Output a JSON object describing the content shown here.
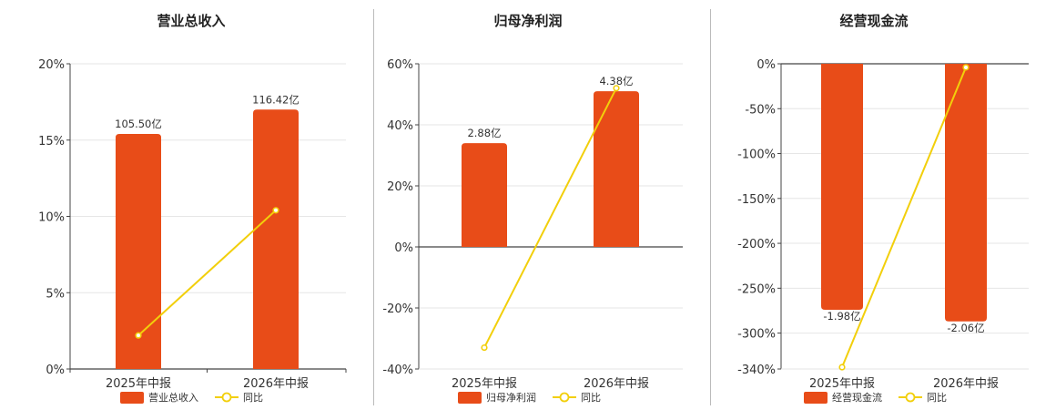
{
  "colors": {
    "bar": "#e84c18",
    "line": "#f2cf0b",
    "grid": "#e6e6e6",
    "axis": "#444444",
    "divider": "#bbbbbb"
  },
  "legend": {
    "line_label": "同比"
  },
  "chart_data": [
    {
      "type": "bar",
      "title": "营业总收入",
      "categories": [
        "2025年中报",
        "2026年中报"
      ],
      "bar_labels": [
        "105.50亿",
        "116.42亿"
      ],
      "bar_values_pct": [
        15.4,
        17.0
      ],
      "line_values_pct": [
        2.2,
        10.4
      ],
      "ylim": [
        0,
        20
      ],
      "yticks": [
        0,
        5,
        10,
        15,
        20
      ],
      "ytick_labels": [
        "0%",
        "5%",
        "10%",
        "15%",
        "20%"
      ],
      "legend_bar_label": "营业总收入",
      "grid": true
    },
    {
      "type": "bar",
      "title": "归母净利润",
      "categories": [
        "2025年中报",
        "2026年中报"
      ],
      "bar_labels": [
        "2.88亿",
        "4.38亿"
      ],
      "bar_values_pct": [
        34,
        51
      ],
      "line_values_pct": [
        -33,
        52
      ],
      "ylim": [
        -40,
        60
      ],
      "yticks": [
        -40,
        -20,
        0,
        20,
        40,
        60
      ],
      "ytick_labels": [
        "-40%",
        "-20%",
        "0%",
        "20%",
        "40%",
        "60%"
      ],
      "legend_bar_label": "归母净利润",
      "grid": true
    },
    {
      "type": "bar",
      "title": "经营现金流",
      "categories": [
        "2025年中报",
        "2026年中报"
      ],
      "bar_labels": [
        "-1.98亿",
        "-2.06亿"
      ],
      "bar_values_pct": [
        -274,
        -287
      ],
      "line_values_pct": [
        -338,
        -4
      ],
      "ylim": [
        -340,
        0
      ],
      "yticks": [
        -340,
        -300,
        -250,
        -200,
        -150,
        -100,
        -50,
        0
      ],
      "ytick_labels": [
        "-340%",
        "-300%",
        "-250%",
        "-200%",
        "-150%",
        "-100%",
        "-50%",
        "0%"
      ],
      "legend_bar_label": "经营现金流",
      "grid": true
    }
  ]
}
